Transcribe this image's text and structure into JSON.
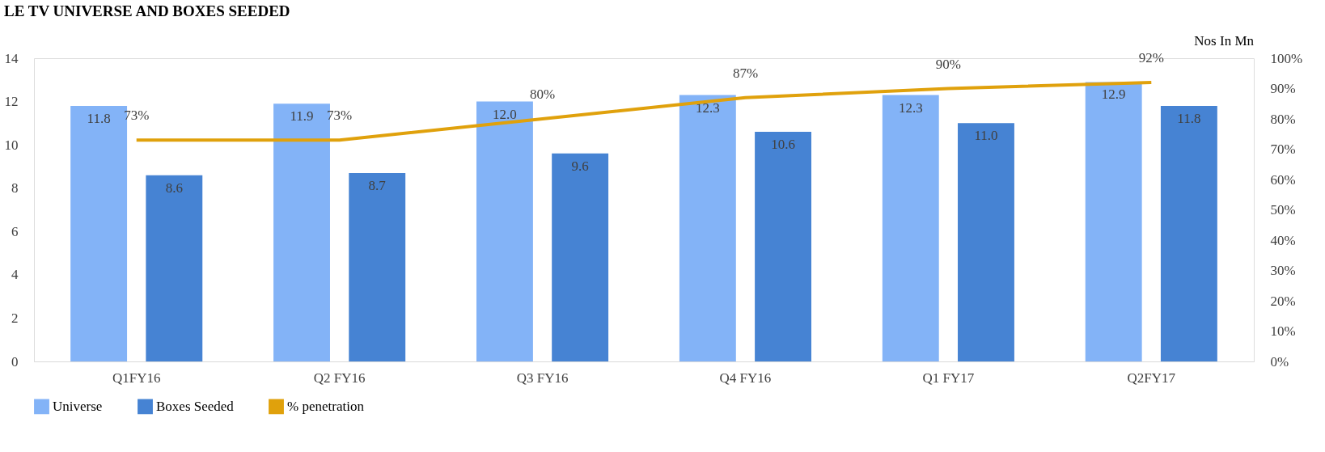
{
  "chart_data": {
    "type": "bar",
    "title": "LE TV UNIVERSE AND BOXES SEEDED",
    "categories": [
      "Q1FY16",
      "Q2 FY16",
      "Q3 FY16",
      "Q4 FY16",
      "Q1 FY17",
      "Q2FY17"
    ],
    "series": [
      {
        "name": "Universe",
        "color": "#83b3f7",
        "values": [
          11.8,
          11.9,
          12.0,
          12.3,
          12.3,
          12.9
        ],
        "value_labels": [
          "11.8",
          "11.9",
          "12.0",
          "12.3",
          "12.3",
          "12.9"
        ]
      },
      {
        "name": "Boxes Seeded",
        "color": "#4683d3",
        "values": [
          8.6,
          8.7,
          9.6,
          10.6,
          11.0,
          11.8
        ],
        "value_labels": [
          "8.6",
          "8.7",
          "9.6",
          "10.6",
          "11.0",
          "11.8"
        ]
      },
      {
        "name": "% penetration",
        "type": "line",
        "axis": "y2",
        "color": "#e0a10c",
        "values": [
          73,
          73,
          80,
          87,
          90,
          92
        ],
        "value_labels": [
          "73%",
          "73%",
          "80%",
          "87%",
          "90%",
          "92%"
        ]
      }
    ],
    "data_labels": true,
    "ylim": [
      0,
      14
    ],
    "yticks": [
      0,
      2,
      4,
      6,
      8,
      10,
      12,
      14
    ],
    "y2lim": [
      0,
      100
    ],
    "y2ticks": [
      {
        "value": 0,
        "label": "0%"
      },
      {
        "value": 10,
        "label": "10%"
      },
      {
        "value": 20,
        "label": "20%"
      },
      {
        "value": 30,
        "label": "30%"
      },
      {
        "value": 40,
        "label": "40%"
      },
      {
        "value": 50,
        "label": "50%"
      },
      {
        "value": 60,
        "label": "60%"
      },
      {
        "value": 70,
        "label": "70%"
      },
      {
        "value": 80,
        "label": "80%"
      },
      {
        "value": 90,
        "label": "90%"
      },
      {
        "value": 100,
        "label": "100%"
      }
    ],
    "annotations": [
      "Nos In Mn"
    ],
    "legend": "bottom",
    "grid": false,
    "marker": "none",
    "line_style": "solid"
  }
}
